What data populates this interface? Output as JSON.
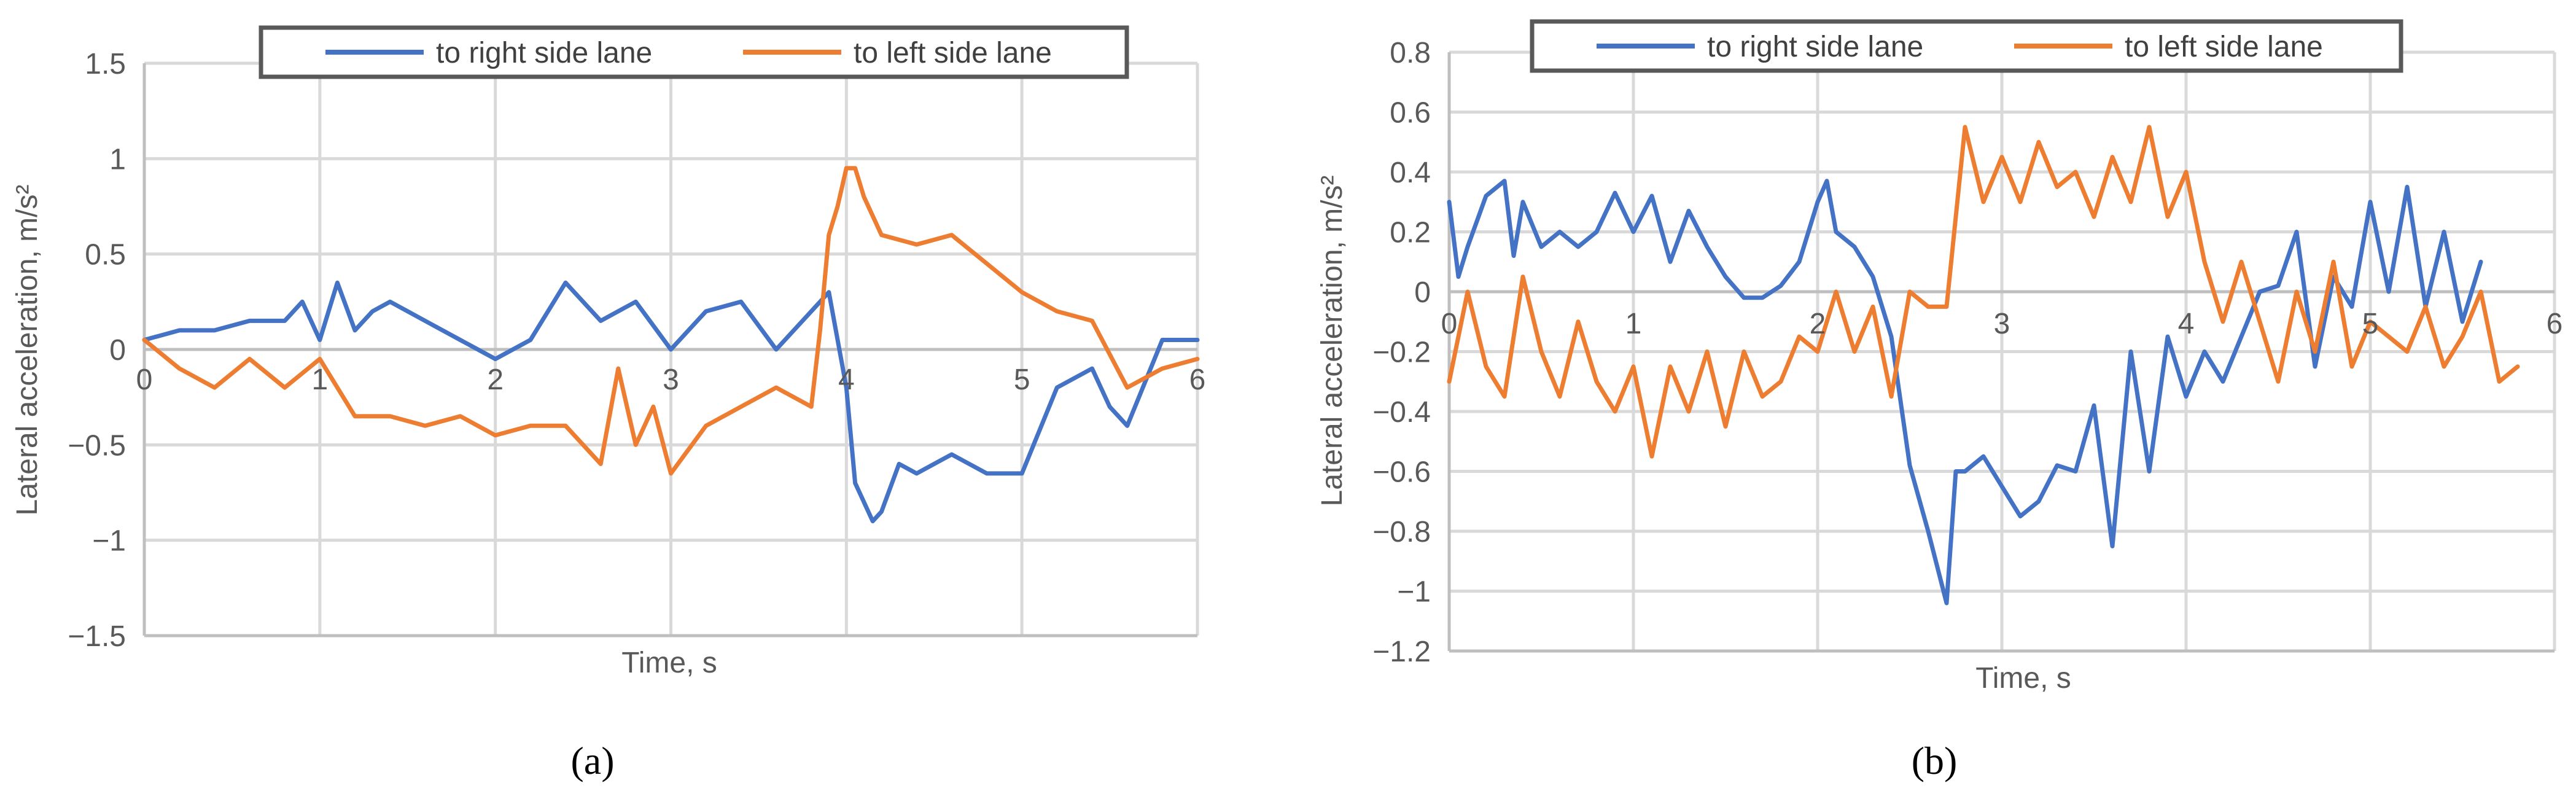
{
  "chart_data": [
    {
      "type": "line",
      "panel_label": "(a)",
      "xlabel": "Time, s",
      "ylabel": "Lateral acceleration, m/s²",
      "xlim": [
        0,
        6
      ],
      "ylim": [
        -1.5,
        1.5
      ],
      "x_ticks": [
        0,
        1,
        2,
        3,
        4,
        5,
        6
      ],
      "y_ticks": [
        -1.5,
        -1,
        -0.5,
        0,
        0.5,
        1,
        1.5
      ],
      "x_tick_labels": [
        "0",
        "1",
        "2",
        "3",
        "4",
        "5",
        "6"
      ],
      "y_tick_labels": [
        "−1.5",
        "−1",
        "−0.5",
        "0",
        "0.5",
        "1",
        "1.5"
      ],
      "grid": true,
      "legend_position": "top",
      "series": [
        {
          "name": "to right side lane",
          "color": "#4472c4",
          "x": [
            0,
            0.2,
            0.4,
            0.6,
            0.8,
            0.9,
            1.0,
            1.1,
            1.2,
            1.3,
            1.4,
            1.6,
            1.8,
            2.0,
            2.2,
            2.4,
            2.6,
            2.8,
            3.0,
            3.2,
            3.4,
            3.6,
            3.8,
            3.9,
            4.0,
            4.05,
            4.1,
            4.15,
            4.2,
            4.3,
            4.4,
            4.6,
            4.8,
            5.0,
            5.2,
            5.4,
            5.5,
            5.6,
            5.8,
            6.0
          ],
          "y": [
            0.05,
            0.1,
            0.1,
            0.15,
            0.15,
            0.25,
            0.05,
            0.35,
            0.1,
            0.2,
            0.25,
            0.15,
            0.05,
            -0.05,
            0.05,
            0.35,
            0.15,
            0.25,
            0.0,
            0.2,
            0.25,
            0.0,
            0.2,
            0.3,
            -0.2,
            -0.7,
            -0.8,
            -0.9,
            -0.85,
            -0.6,
            -0.65,
            -0.55,
            -0.65,
            -0.65,
            -0.2,
            -0.1,
            -0.3,
            -0.4,
            0.05,
            0.05
          ]
        },
        {
          "name": "to left side lane",
          "color": "#ed7d31",
          "x": [
            0,
            0.2,
            0.4,
            0.6,
            0.8,
            1.0,
            1.2,
            1.4,
            1.6,
            1.8,
            2.0,
            2.2,
            2.4,
            2.6,
            2.7,
            2.8,
            2.9,
            3.0,
            3.2,
            3.4,
            3.6,
            3.8,
            3.85,
            3.9,
            3.95,
            4.0,
            4.05,
            4.1,
            4.2,
            4.4,
            4.6,
            4.8,
            5.0,
            5.2,
            5.4,
            5.6,
            5.8,
            6.0
          ],
          "y": [
            0.05,
            -0.1,
            -0.2,
            -0.05,
            -0.2,
            -0.05,
            -0.35,
            -0.35,
            -0.4,
            -0.35,
            -0.45,
            -0.4,
            -0.4,
            -0.6,
            -0.1,
            -0.5,
            -0.3,
            -0.65,
            -0.4,
            -0.3,
            -0.2,
            -0.3,
            0.1,
            0.6,
            0.75,
            0.95,
            0.95,
            0.8,
            0.6,
            0.55,
            0.6,
            0.45,
            0.3,
            0.2,
            0.15,
            -0.2,
            -0.1,
            -0.05
          ]
        }
      ]
    },
    {
      "type": "line",
      "panel_label": "(b)",
      "xlabel": "Time, s",
      "ylabel": "Lateral acceleration, m/s²",
      "xlim": [
        0,
        6
      ],
      "ylim": [
        -1.2,
        0.8
      ],
      "x_ticks": [
        0,
        1,
        2,
        3,
        4,
        5,
        6
      ],
      "y_ticks": [
        -1.2,
        -1,
        -0.8,
        -0.6,
        -0.4,
        -0.2,
        0,
        0.2,
        0.4,
        0.6,
        0.8
      ],
      "x_tick_labels": [
        "0",
        "1",
        "2",
        "3",
        "4",
        "5",
        "6"
      ],
      "y_tick_labels": [
        "−1.2",
        "−1",
        "−0.8",
        "−0.6",
        "−0.4",
        "−0.2",
        "0",
        "0.2",
        "0.4",
        "0.6",
        "0.8"
      ],
      "grid": true,
      "legend_position": "top",
      "series": [
        {
          "name": "to right side lane",
          "color": "#4472c4",
          "x": [
            0,
            0.05,
            0.1,
            0.2,
            0.3,
            0.35,
            0.4,
            0.5,
            0.6,
            0.7,
            0.8,
            0.9,
            1.0,
            1.1,
            1.2,
            1.3,
            1.4,
            1.5,
            1.6,
            1.7,
            1.8,
            1.9,
            2.0,
            2.05,
            2.1,
            2.2,
            2.3,
            2.4,
            2.5,
            2.6,
            2.7,
            2.75,
            2.8,
            2.9,
            3.0,
            3.1,
            3.2,
            3.3,
            3.4,
            3.5,
            3.6,
            3.7,
            3.8,
            3.9,
            4.0,
            4.1,
            4.2,
            4.3,
            4.4,
            4.5,
            4.6,
            4.7,
            4.8,
            4.9,
            5.0,
            5.1,
            5.2,
            5.3,
            5.4,
            5.5,
            5.6
          ],
          "y": [
            0.3,
            0.05,
            0.15,
            0.32,
            0.37,
            0.12,
            0.3,
            0.15,
            0.2,
            0.15,
            0.2,
            0.33,
            0.2,
            0.32,
            0.1,
            0.27,
            0.15,
            0.05,
            -0.02,
            -0.02,
            0.02,
            0.1,
            0.3,
            0.37,
            0.2,
            0.15,
            0.05,
            -0.15,
            -0.58,
            -0.8,
            -1.04,
            -0.6,
            -0.6,
            -0.55,
            -0.65,
            -0.75,
            -0.7,
            -0.58,
            -0.6,
            -0.38,
            -0.85,
            -0.2,
            -0.6,
            -0.15,
            -0.35,
            -0.2,
            -0.3,
            -0.15,
            0.0,
            0.02,
            0.2,
            -0.25,
            0.05,
            -0.05,
            0.3,
            0.0,
            0.35,
            -0.05,
            0.2,
            -0.1,
            0.1
          ]
        },
        {
          "name": "to left side lane",
          "color": "#ed7d31",
          "x": [
            0,
            0.1,
            0.2,
            0.3,
            0.4,
            0.5,
            0.6,
            0.7,
            0.8,
            0.9,
            1.0,
            1.1,
            1.2,
            1.3,
            1.4,
            1.5,
            1.6,
            1.7,
            1.8,
            1.9,
            2.0,
            2.1,
            2.2,
            2.3,
            2.4,
            2.5,
            2.6,
            2.7,
            2.75,
            2.8,
            2.9,
            3.0,
            3.1,
            3.2,
            3.3,
            3.4,
            3.5,
            3.6,
            3.7,
            3.8,
            3.9,
            4.0,
            4.1,
            4.2,
            4.3,
            4.4,
            4.5,
            4.6,
            4.7,
            4.8,
            4.9,
            5.0,
            5.1,
            5.2,
            5.3,
            5.4,
            5.5,
            5.6,
            5.7,
            5.8
          ],
          "y": [
            -0.3,
            0.0,
            -0.25,
            -0.35,
            0.05,
            -0.2,
            -0.35,
            -0.1,
            -0.3,
            -0.4,
            -0.25,
            -0.55,
            -0.25,
            -0.4,
            -0.2,
            -0.45,
            -0.2,
            -0.35,
            -0.3,
            -0.15,
            -0.2,
            0.0,
            -0.2,
            -0.05,
            -0.35,
            0.0,
            -0.05,
            -0.05,
            0.25,
            0.55,
            0.3,
            0.45,
            0.3,
            0.5,
            0.35,
            0.4,
            0.25,
            0.45,
            0.3,
            0.55,
            0.25,
            0.4,
            0.1,
            -0.1,
            0.1,
            -0.1,
            -0.3,
            0.0,
            -0.2,
            0.1,
            -0.25,
            -0.1,
            -0.15,
            -0.2,
            -0.05,
            -0.25,
            -0.15,
            0.0,
            -0.3,
            -0.25
          ]
        }
      ]
    }
  ]
}
